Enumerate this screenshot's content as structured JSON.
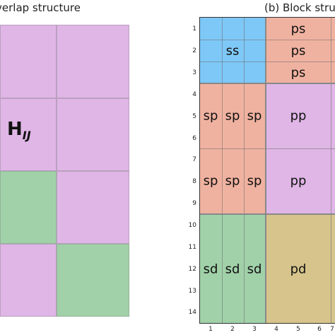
{
  "titles": {
    "left": "verlap structure",
    "right": "(b) Block stru"
  },
  "left_panel": {
    "label_main": "H",
    "label_sub": "IJ"
  },
  "right_panel": {
    "blocks": {
      "ss": "ss",
      "ps": [
        "ps",
        "ps",
        "ps"
      ],
      "sp": [
        "sp",
        "sp",
        "sp",
        "sp",
        "sp",
        "sp"
      ],
      "pp": [
        "pp",
        "pp"
      ],
      "sd": [
        "sd",
        "sd",
        "sd"
      ],
      "pd": "pd"
    },
    "y_ticks": [
      "1",
      "2",
      "3",
      "4",
      "5",
      "6",
      "7",
      "8",
      "9",
      "10",
      "11",
      "12",
      "13",
      "14"
    ],
    "x_ticks": [
      "1",
      "2",
      "3",
      "4",
      "5",
      "6",
      "7"
    ]
  },
  "colors": {
    "s_s": "#7ec8f7",
    "s_p": "#f0b2a0",
    "p_p": "#dfb6e6",
    "s_d": "#a1d1a9",
    "p_d": "#d6c48c"
  }
}
